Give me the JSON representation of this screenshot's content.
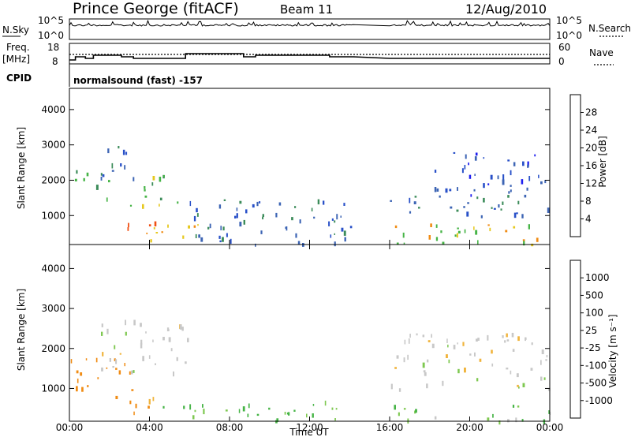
{
  "header": {
    "station": "Prince George (fitACF)",
    "beam": "Beam 11",
    "date": "12/Aug/2010"
  },
  "sky_panel": {
    "left_label": "N.Sky",
    "right_label": "N.Search",
    "left_ticks": [
      "10^5",
      "10^0"
    ],
    "right_ticks": [
      "10^5",
      "10^0"
    ]
  },
  "freq_panel": {
    "left_label_line1": "Freq.",
    "left_label_line2": "[MHz]",
    "right_label": "Nave",
    "left_ticks": [
      "18",
      "8"
    ],
    "right_ticks": [
      "60",
      "0"
    ]
  },
  "cpid": {
    "label": "CPID",
    "value": "normalsound (fast) -157"
  },
  "colors": {
    "power_scale": [
      "#1e1ef0",
      "#2850c8",
      "#3c64b4",
      "#3c8c5a",
      "#46b446",
      "#e6c81e",
      "#f08c14",
      "#f05014",
      "#e61e14"
    ],
    "velocity_scale": [
      "#e61e14",
      "#f05014",
      "#f08c14",
      "#f0b43c",
      "#c8c8c8",
      "#d2d2d2",
      "#7ec850",
      "#46b446",
      "#2d6e46",
      "#2850c8",
      "#1e2ea0"
    ]
  },
  "chart_data": [
    {
      "type": "heatmap",
      "name": "power",
      "ylabel": "Slant Range [km]",
      "yticks": [
        1000,
        2000,
        3000,
        4000
      ],
      "ylim": [
        180,
        4600
      ],
      "xlim": [
        0,
        24
      ],
      "colorbar_label": "Power [dB]",
      "colorbar_ticks": [
        "28",
        "24",
        "20",
        "16",
        "12",
        "8",
        "4"
      ],
      "data_gaps_hours": [
        [
          14.2,
          16.0
        ]
      ],
      "echo_regions": [
        {
          "t0": 0.0,
          "t1": 2.0,
          "r0": 1500,
          "r1": 2300,
          "level": 12
        },
        {
          "t0": 1.5,
          "t1": 3.2,
          "r0": 2100,
          "r1": 3000,
          "level": 8
        },
        {
          "t0": 3.0,
          "t1": 5.8,
          "r0": 1300,
          "r1": 2200,
          "level": 14
        },
        {
          "t0": 2.8,
          "t1": 4.8,
          "r0": 500,
          "r1": 1000,
          "level": 22
        },
        {
          "t0": 4.0,
          "t1": 7.0,
          "r0": 300,
          "r1": 800,
          "level": 20
        },
        {
          "t0": 6.0,
          "t1": 14.2,
          "r0": 200,
          "r1": 1500,
          "level": 8
        },
        {
          "t0": 16.0,
          "t1": 24.0,
          "r0": 200,
          "r1": 800,
          "level": 18
        },
        {
          "t0": 16.0,
          "t1": 24.0,
          "r0": 1000,
          "r1": 1600,
          "level": 10
        },
        {
          "t0": 18.0,
          "t1": 24.0,
          "r0": 1600,
          "r1": 2800,
          "level": 6
        }
      ]
    },
    {
      "type": "heatmap",
      "name": "velocity",
      "ylabel": "Slant Range [km]",
      "yticks": [
        1000,
        2000,
        3000,
        4000
      ],
      "ylim": [
        180,
        4600
      ],
      "xlim": [
        0,
        24
      ],
      "xlabel": "Time UT",
      "xticks": [
        "00:00",
        "04:00",
        "08:00",
        "12:00",
        "16:00",
        "20:00",
        "00:00"
      ],
      "colorbar_label": "Velocity [m s⁻¹]",
      "colorbar_ticks": [
        "1000",
        "500",
        "100",
        "25",
        "-25",
        "-100",
        "-500",
        "-1000"
      ],
      "data_gaps_hours": [
        [
          14.2,
          16.0
        ]
      ],
      "echo_regions": [
        {
          "t0": 0.0,
          "t1": 3.0,
          "r0": 800,
          "r1": 1800,
          "velocity": -300
        },
        {
          "t0": 2.5,
          "t1": 4.5,
          "r0": 400,
          "r1": 1000,
          "velocity": -250
        },
        {
          "t0": 1.5,
          "t1": 6.0,
          "r0": 1400,
          "r1": 2800,
          "velocity": 0
        },
        {
          "t0": 4.5,
          "t1": 14.2,
          "r0": 200,
          "r1": 700,
          "velocity": 120
        },
        {
          "t0": 16.0,
          "t1": 24.0,
          "r0": 200,
          "r1": 600,
          "velocity": 80
        },
        {
          "t0": 16.0,
          "t1": 24.0,
          "r0": 1000,
          "r1": 2400,
          "velocity": 0
        }
      ]
    }
  ],
  "axes": {
    "x_label": "Time UT",
    "x_ticks": [
      "00:00",
      "04:00",
      "08:00",
      "12:00",
      "16:00",
      "20:00",
      "00:00"
    ],
    "y_label": "Slant Range [km]",
    "y_ticks": [
      "1000",
      "2000",
      "3000",
      "4000"
    ]
  }
}
